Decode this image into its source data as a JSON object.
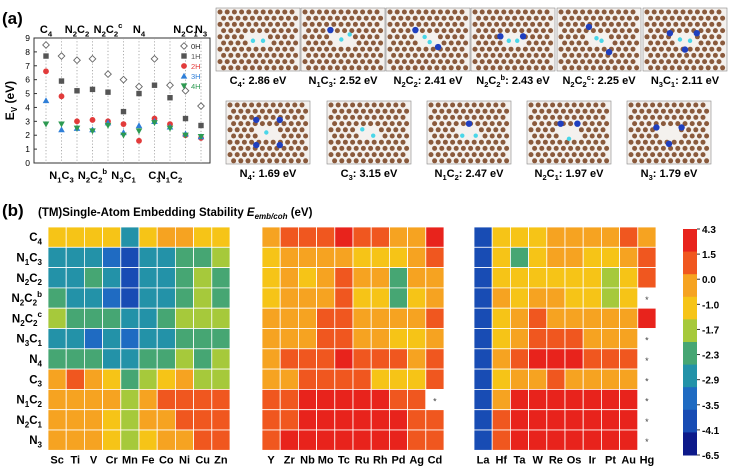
{
  "panel_labels": {
    "a": "(a)",
    "b": "(b)"
  },
  "chart_data": [
    {
      "type": "scatter",
      "panel": "a",
      "ylabel": "E",
      "ylabel_sub": "V",
      "ylabel_unit": "(eV)",
      "ylim": [
        0,
        9
      ],
      "yticks": [
        0,
        1,
        2,
        3,
        4,
        5,
        6,
        7,
        8,
        9
      ],
      "categories": [
        "C4",
        "N1C3",
        "N2C2",
        "N2C2b",
        "N2C2c",
        "N3C1",
        "N4",
        "C3",
        "N1C2",
        "N2C1",
        "N3"
      ],
      "top_labels": [
        {
          "text": "C",
          "sub": "4",
          "sup": "",
          "cat": 0
        },
        {
          "text": "N",
          "sub": "2",
          "text2": "C",
          "sub2": "2",
          "sup": "",
          "cat": 2
        },
        {
          "text": "N",
          "sub": "2",
          "text2": "C",
          "sub2": "2",
          "sup": "c",
          "cat": 4
        },
        {
          "text": "N",
          "sub": "4",
          "sup": "",
          "cat": 6
        },
        {
          "text": "N",
          "sub": "2",
          "text2": "C",
          "sub2": "1",
          "sup": "",
          "cat": 9
        },
        {
          "text": "N",
          "sub": "3",
          "sup": "",
          "cat": 10
        }
      ],
      "bottom_labels": [
        {
          "text": "N",
          "sub": "1",
          "text2": "C",
          "sub2": "3",
          "sup": "",
          "cat": 1
        },
        {
          "text": "N",
          "sub": "2",
          "text2": "C",
          "sub2": "2",
          "sup": "b",
          "cat": 3
        },
        {
          "text": "N",
          "sub": "3",
          "text2": "C",
          "sub2": "1",
          "sup": "",
          "cat": 5
        },
        {
          "text": "C",
          "sub": "3",
          "sup": "",
          "cat": 7
        },
        {
          "text": "N",
          "sub": "1",
          "text2": "C",
          "sub2": "2",
          "sup": "",
          "cat": 8
        }
      ],
      "series": [
        {
          "name": "0H",
          "marker": "diamond-open",
          "color": "#666666",
          "values": [
            8.5,
            7.7,
            7.4,
            7.5,
            6.4,
            6.0,
            5.5,
            7.5,
            5.6,
            5.2,
            4.1
          ]
        },
        {
          "name": "1H",
          "marker": "square",
          "color": "#555555",
          "values": [
            7.7,
            5.9,
            5.2,
            5.3,
            5.1,
            3.7,
            5.0,
            5.6,
            4.7,
            3.2,
            2.7
          ]
        },
        {
          "name": "2H",
          "marker": "circle",
          "color": "#e23b3b",
          "values": [
            6.6,
            4.8,
            3.0,
            3.1,
            3.0,
            2.8,
            1.6,
            3.2,
            2.8,
            2.0,
            1.8
          ]
        },
        {
          "name": "3H",
          "marker": "triangle-up",
          "color": "#2f7fd8",
          "values": [
            4.5,
            2.4,
            2.5,
            2.4,
            2.9,
            2.2,
            2.7,
            3.0,
            2.6,
            2.1,
            1.9
          ]
        },
        {
          "name": "4H",
          "marker": "triangle-down",
          "color": "#2e9a52",
          "values": [
            2.8,
            2.8,
            2.5,
            2.3,
            2.7,
            2.0,
            2.3,
            2.9,
            2.5,
            2.0,
            1.9
          ]
        }
      ],
      "legend_position": "top-right"
    },
    {
      "type": "table",
      "panel": "a-structures",
      "structures": [
        {
          "label": "C",
          "sub": "4",
          "sup": "",
          "text2": "",
          "sub2": "",
          "energy": "2.86 eV"
        },
        {
          "label": "N",
          "sub": "1",
          "sup": "",
          "text2": "C",
          "sub2": "3",
          "energy": "2.52 eV"
        },
        {
          "label": "N",
          "sub": "2",
          "sup": "",
          "text2": "C",
          "sub2": "2",
          "energy": "2.41 eV"
        },
        {
          "label": "N",
          "sub": "2",
          "sup": "",
          "text2": "C",
          "sub2": "2",
          "sup2": "b",
          "energy": "2.43 eV"
        },
        {
          "label": "N",
          "sub": "2",
          "sup": "",
          "text2": "C",
          "sub2": "2",
          "sup2": "c",
          "energy": "2.25 eV"
        },
        {
          "label": "N",
          "sub": "3",
          "sup": "",
          "text2": "C",
          "sub2": "1",
          "energy": "2.11 eV"
        },
        {
          "label": "N",
          "sub": "4",
          "sup": "",
          "text2": "",
          "sub2": "",
          "energy": "1.69 eV"
        },
        {
          "label": "C",
          "sub": "3",
          "sup": "",
          "text2": "",
          "sub2": "",
          "energy": "3.15 eV"
        },
        {
          "label": "N",
          "sub": "1",
          "sup": "",
          "text2": "C",
          "sub2": "2",
          "energy": "2.47 eV"
        },
        {
          "label": "N",
          "sub": "2",
          "sup": "",
          "text2": "C",
          "sub2": "1",
          "energy": "1.97 eV"
        },
        {
          "label": "N",
          "sub": "3",
          "sup": "",
          "text2": "",
          "sub2": "",
          "energy": "1.79 eV"
        }
      ],
      "colors": {
        "carbon": "#8a5a3c",
        "nitrogen": "#1f3fbf",
        "hydrogen": "#49d6e8"
      }
    },
    {
      "type": "heatmap",
      "panel": "b",
      "title_prefix": "(TM)Single-Atom Embedding Stability ",
      "title_symbol": "E",
      "title_sub": "emb/coh",
      "title_unit": " (eV)",
      "rows": [
        {
          "t": "C",
          "s": "4",
          "p": ""
        },
        {
          "t": "N",
          "s": "1",
          "t2": "C",
          "s2": "3",
          "p": ""
        },
        {
          "t": "N",
          "s": "2",
          "t2": "C",
          "s2": "2",
          "p": ""
        },
        {
          "t": "N",
          "s": "2",
          "t2": "C",
          "s2": "2",
          "p": "b"
        },
        {
          "t": "N",
          "s": "2",
          "t2": "C",
          "s2": "2",
          "p": "c"
        },
        {
          "t": "N",
          "s": "3",
          "t2": "C",
          "s2": "1",
          "p": ""
        },
        {
          "t": "N",
          "s": "4",
          "p": ""
        },
        {
          "t": "C",
          "s": "3",
          "p": ""
        },
        {
          "t": "N",
          "s": "1",
          "t2": "C",
          "s2": "2",
          "p": ""
        },
        {
          "t": "N",
          "s": "2",
          "t2": "C",
          "s2": "1",
          "p": ""
        },
        {
          "t": "N",
          "s": "3",
          "p": ""
        }
      ],
      "groups": [
        [
          "Sc",
          "Ti",
          "V",
          "Cr",
          "Mn",
          "Fe",
          "Co",
          "Ni",
          "Cu",
          "Zn"
        ],
        [
          "Y",
          "Zr",
          "Nb",
          "Mo",
          "Tc",
          "Ru",
          "Rh",
          "Pd",
          "Ag",
          "Cd"
        ],
        [
          "La",
          "Hf",
          "Ta",
          "W",
          "Re",
          "Os",
          "Ir",
          "Pt",
          "Au",
          "Hg"
        ]
      ],
      "values": [
        [
          [
            -1.3,
            -1.1,
            -1.4,
            -1.6,
            -3.3,
            -1.3,
            -0.9,
            -1.0,
            -1.2,
            -1.6
          ],
          [
            -0.7,
            0.1,
            0.3,
            1.0,
            1.8,
            1.1,
            0.2,
            -0.4,
            -0.7,
            1.9
          ],
          [
            -6.2,
            -1.7,
            -1.2,
            -1.3,
            -0.9,
            -0.6,
            -0.9,
            -1.0,
            0.0,
            -0.5
          ]
        ],
        [
          [
            -3.0,
            -3.2,
            -3.4,
            -4.0,
            -5.2,
            -3.3,
            -3.0,
            -2.7,
            -2.9,
            -2.2
          ],
          [
            -1.3,
            -0.8,
            -0.8,
            -0.7,
            -0.4,
            -1.1,
            -1.4,
            -1.5,
            -0.9,
            0.1
          ],
          [
            -6.4,
            -1.4,
            -2.6,
            -1.2,
            -0.8,
            -1.0,
            -1.2,
            -1.2,
            -0.7,
            0.1
          ]
        ],
        [
          [
            -3.3,
            -3.1,
            -2.9,
            -3.5,
            -4.3,
            -3.3,
            -3.1,
            -2.6,
            -2.3,
            -2.6
          ],
          [
            -1.1,
            -0.7,
            -1.1,
            -0.2,
            0.1,
            -0.8,
            -1.0,
            -2.7,
            -1.0,
            -0.5
          ],
          [
            -6.3,
            -1.4,
            -1.6,
            -1.5,
            -1.2,
            -1.3,
            -1.7,
            -2.1,
            -1.7,
            0.0
          ]
        ],
        [
          [
            -2.9,
            -3.2,
            -3.4,
            -3.6,
            -4.5,
            -3.5,
            -3.2,
            -2.6,
            -2.1,
            -2.6
          ],
          [
            -1.5,
            -0.6,
            -1.0,
            -0.3,
            0.1,
            -1.1,
            -1.2,
            -2.5,
            -1.3,
            -0.8
          ],
          [
            -6.4,
            -0.9,
            -1.5,
            -1.0,
            -1.0,
            -1.2,
            -1.6,
            -2.0,
            -1.5,
            null
          ]
        ],
        [
          [
            -2.2,
            -2.9,
            -2.7,
            -2.8,
            -3.3,
            -3.0,
            -2.5,
            -2.0,
            -2.1,
            -2.1
          ],
          [
            -0.8,
            -0.8,
            -0.4,
            0.1,
            0.4,
            -0.3,
            -0.5,
            -0.6,
            -0.6,
            0.0
          ],
          [
            -6.1,
            -1.2,
            -0.5,
            0.0,
            -0.1,
            -0.4,
            -0.6,
            -0.9,
            -0.3,
            1.5
          ]
        ],
        [
          [
            -3.1,
            -3.4,
            -3.6,
            -3.3,
            -4.1,
            -3.3,
            -3.2,
            -2.8,
            -2.6,
            -2.7
          ],
          [
            -0.8,
            -0.3,
            -0.3,
            0.3,
            0.3,
            -0.2,
            -0.7,
            -1.5,
            -1.3,
            -0.6
          ],
          [
            -6.2,
            -1.3,
            -0.5,
            0.3,
            0.3,
            0.1,
            -0.3,
            -0.4,
            -0.4,
            null
          ]
        ],
        [
          [
            -2.4,
            -2.8,
            -2.9,
            -3.1,
            -3.5,
            -2.9,
            -2.6,
            -2.3,
            -2.5,
            -2.2
          ],
          [
            -0.4,
            0.0,
            0.7,
            1.4,
            2.1,
            1.3,
            0.9,
            0.2,
            -0.2,
            0.6
          ],
          [
            -6.0,
            -0.9,
            0.1,
            2.0,
            2.3,
            2.1,
            1.2,
            0.6,
            0.4,
            null
          ]
        ],
        [
          [
            -0.2,
            0.0,
            -0.6,
            -1.5,
            -2.6,
            -2.0,
            -1.2,
            -0.9,
            -1.9,
            -1.8
          ],
          [
            -0.7,
            -0.6,
            0.0,
            0.4,
            0.6,
            0.3,
            -1.1,
            -1.6,
            -1.1,
            0.2
          ],
          [
            -6.2,
            -1.2,
            -0.8,
            -0.1,
            0.1,
            -0.3,
            -0.7,
            -0.8,
            -0.9,
            null
          ]
        ],
        [
          [
            -0.3,
            -0.3,
            -0.5,
            -0.9,
            -1.8,
            -0.5,
            0.2,
            0.2,
            0.3,
            0.4
          ],
          [
            1.1,
            0.6,
            1.5,
            2.5,
            2.8,
            2.4,
            2.0,
            1.4,
            0.4,
            null
          ],
          [
            -4.9,
            -0.8,
            2.1,
            2.9,
            3.0,
            2.9,
            2.6,
            2.3,
            1.8,
            null
          ]
        ],
        [
          [
            -0.5,
            -0.4,
            -0.7,
            -1.3,
            -2.1,
            -1.0,
            -0.3,
            0.0,
            0.3,
            0.5
          ],
          [
            0.9,
            1.0,
            2.0,
            2.9,
            3.2,
            2.7,
            2.2,
            1.5,
            1.2,
            0.4
          ],
          [
            -5.4,
            0.1,
            2.4,
            3.3,
            3.4,
            3.2,
            2.8,
            2.3,
            2.0,
            null
          ]
        ],
        [
          [
            -0.6,
            -0.5,
            -0.9,
            -1.4,
            -2.2,
            -1.2,
            -0.4,
            -0.2,
            0.5,
            0.9
          ],
          [
            1.3,
            1.7,
            2.3,
            3.1,
            3.3,
            2.9,
            2.3,
            1.7,
            1.2,
            0.6
          ],
          [
            -5.5,
            0.3,
            2.6,
            3.4,
            3.5,
            3.3,
            2.9,
            2.5,
            2.1,
            null
          ]
        ]
      ],
      "empty_marker": "*",
      "colorbar_ticks": [
        "4.3",
        "1.5",
        "0.0",
        "-1.0",
        "-1.7",
        "-2.3",
        "-2.9",
        "-3.5",
        "-4.1",
        "-6.5"
      ],
      "colorbar_colors": [
        "#e8231c",
        "#f0571f",
        "#f6a321",
        "#f6c417",
        "#a6c93b",
        "#46a673",
        "#2392a8",
        "#1f6bc2",
        "#184cb4",
        "#0d1a8a"
      ]
    }
  ]
}
